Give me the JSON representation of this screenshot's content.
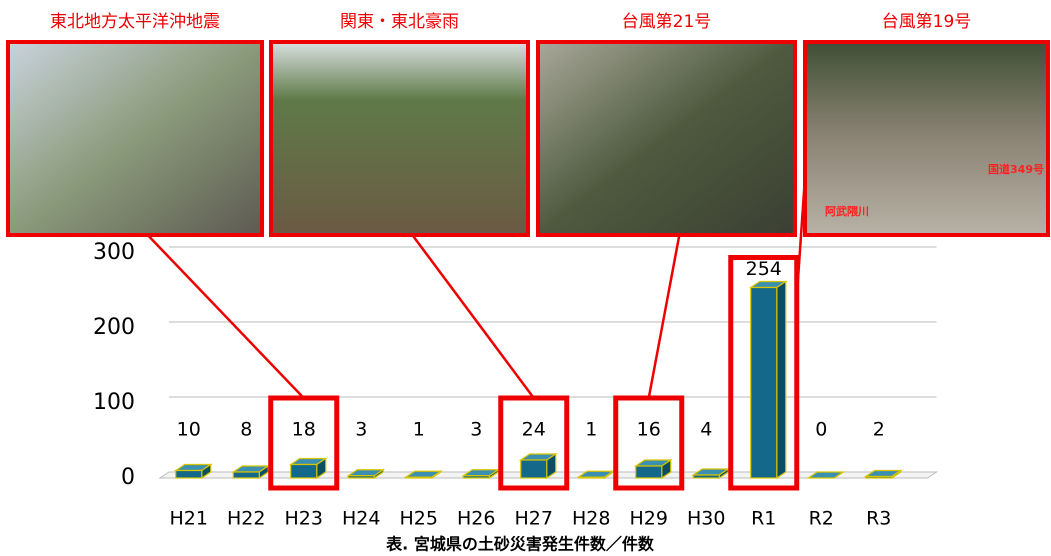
{
  "chart_data": {
    "type": "bar",
    "categories": [
      "H21",
      "H22",
      "H23",
      "H24",
      "H25",
      "H26",
      "H27",
      "H28",
      "H29",
      "H30",
      "R1",
      "R2",
      "R3"
    ],
    "values": [
      10,
      8,
      18,
      3,
      1,
      3,
      24,
      1,
      16,
      4,
      254,
      0,
      2
    ],
    "color": "#14698a",
    "ylim": [
      0,
      300
    ],
    "yticks": [
      0,
      100,
      200,
      300
    ],
    "grid": true,
    "caption": "表. 宮城県の土砂災害発生件数／件数",
    "annotations": [
      {
        "label": "東北地方太平洋沖地震",
        "category": "H23"
      },
      {
        "label": "関東・東北豪雨",
        "category": "H27"
      },
      {
        "label": "台風第21号",
        "category": "H29"
      },
      {
        "label": "台風第19号",
        "category": "R1",
        "photo_labels": [
          "国道349号",
          "阿武隈川"
        ]
      }
    ]
  }
}
